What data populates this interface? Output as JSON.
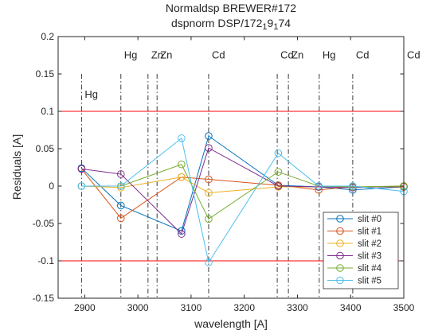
{
  "chart_data": {
    "type": "line",
    "title": "Normaldsp BREWER#172",
    "subtitle_parts": [
      {
        "text": "dspnorm DSP/172",
        "sub": false
      },
      {
        "text": "1",
        "sub": true
      },
      {
        "text": "9",
        "sub": false
      },
      {
        "text": "1",
        "sub": true
      },
      {
        "text": "74",
        "sub": false
      }
    ],
    "xlabel": "wavelength [A]",
    "ylabel": "Residuals [A]",
    "xlim": [
      2850,
      3500
    ],
    "ylim": [
      -0.15,
      0.2
    ],
    "xticks": [
      "2900",
      "3000",
      "3100",
      "3200",
      "3300",
      "3400",
      "3500"
    ],
    "xtick_values": [
      2900,
      3000,
      3100,
      3200,
      3300,
      3400,
      3500
    ],
    "yticks": [
      "-0.15",
      "-0.1",
      "-0.05",
      "0",
      "0.05",
      "0.1",
      "0.15",
      "0.2"
    ],
    "ytick_values": [
      -0.15,
      -0.1,
      -0.05,
      0,
      0.05,
      0.1,
      0.15,
      0.2
    ],
    "grid": false,
    "legend_position": "bottom-right",
    "x": [
      2894,
      2968,
      3082,
      3133,
      3264,
      3340,
      3404,
      3500
    ],
    "series": [
      {
        "name": "slit #0",
        "color": "#0072BD",
        "values": [
          0.024,
          -0.026,
          -0.06,
          0.067,
          0.001,
          -0.001,
          -0.005,
          -0.001
        ]
      },
      {
        "name": "slit #1",
        "color": "#D95319",
        "values": [
          0.023,
          -0.043,
          0.012,
          0.009,
          0.001,
          -0.005,
          -0.001,
          -0.001
        ]
      },
      {
        "name": "slit #2",
        "color": "#EDB120",
        "values": [
          0.0,
          -0.002,
          0.012,
          -0.009,
          -0.001,
          -0.001,
          -0.001,
          0.0
        ]
      },
      {
        "name": "slit #3",
        "color": "#7E2F8E",
        "values": [
          0.023,
          0.016,
          -0.064,
          0.051,
          0.0,
          -0.001,
          -0.002,
          0.0
        ]
      },
      {
        "name": "slit #4",
        "color": "#77AC30",
        "values": [
          0.0,
          0.0,
          0.029,
          -0.044,
          0.019,
          0.0,
          -0.001,
          0.0
        ]
      },
      {
        "name": "slit #5",
        "color": "#4DBEEE",
        "values": [
          0.0,
          0.0,
          0.064,
          -0.102,
          0.044,
          0.0,
          0.0,
          -0.007
        ]
      }
    ],
    "threshold_lines": [
      {
        "y": 0.1,
        "color": "#FF0000"
      },
      {
        "y": -0.1,
        "color": "#FF0000"
      }
    ],
    "reference_lines": [
      {
        "x": 2894,
        "label": "Hg",
        "label_y": 0.118
      },
      {
        "x": 2968,
        "label": "Hg",
        "label_y": 0.171
      },
      {
        "x": 3019,
        "label": "Zn",
        "label_y": 0.171
      },
      {
        "x": 3036,
        "label": "Zn",
        "label_y": 0.171
      },
      {
        "x": 3133,
        "label": "Cd",
        "label_y": 0.171
      },
      {
        "x": 3262,
        "label": "Cd",
        "label_y": 0.171
      },
      {
        "x": 3283,
        "label": "Zn",
        "label_y": 0.171
      },
      {
        "x": 3341,
        "label": "Hg",
        "label_y": 0.171
      },
      {
        "x": 3404,
        "label": "Cd",
        "label_y": 0.171
      },
      {
        "x": 3500,
        "label": "Cd",
        "label_y": 0.171
      }
    ]
  }
}
